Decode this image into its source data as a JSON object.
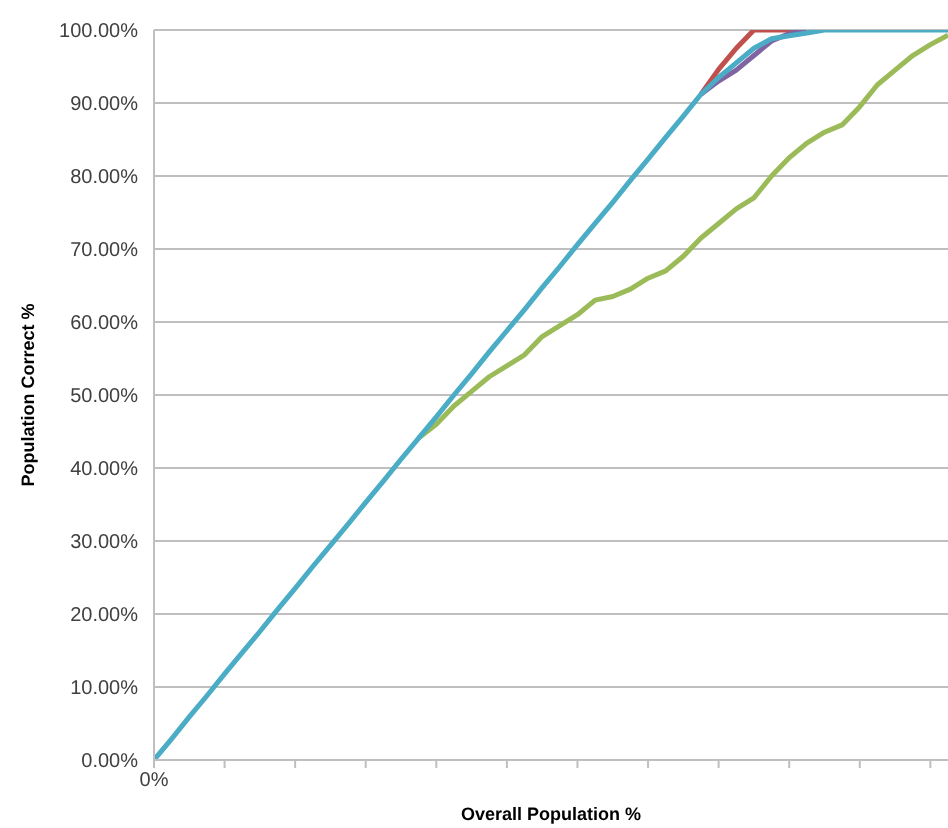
{
  "chart_data": {
    "type": "line",
    "xlabel": "Overall Population %",
    "ylabel": "Population Correct %",
    "categories": [
      "0%",
      null,
      null,
      null,
      null,
      null,
      null,
      null,
      null,
      null,
      null,
      null,
      null,
      null,
      null,
      null,
      null,
      null,
      null,
      null,
      null,
      null,
      null,
      null,
      null,
      null,
      null,
      null,
      null,
      null,
      null,
      null,
      null,
      null,
      null,
      null,
      null,
      null,
      null,
      null,
      null,
      null,
      null,
      null,
      null,
      null
    ],
    "ylim": [
      0,
      100
    ],
    "yticks": [
      {
        "value": 0,
        "label": "0.00%"
      },
      {
        "value": 10,
        "label": "10.00%"
      },
      {
        "value": 20,
        "label": "20.00%"
      },
      {
        "value": 30,
        "label": "30.00%"
      },
      {
        "value": 40,
        "label": "40.00%"
      },
      {
        "value": 50,
        "label": "50.00%"
      },
      {
        "value": 60,
        "label": "60.00%"
      },
      {
        "value": 70,
        "label": "70.00%"
      },
      {
        "value": 80,
        "label": "80.00%"
      },
      {
        "value": 90,
        "label": "90.00%"
      },
      {
        "value": 100,
        "label": "100.00%"
      }
    ],
    "grid": "y",
    "legend": false,
    "marker": "none",
    "line_style": "solid",
    "series": [
      {
        "color": "#9bbb59",
        "values": [
          null,
          null,
          null,
          null,
          null,
          null,
          null,
          null,
          null,
          null,
          null,
          null,
          null,
          null,
          null,
          44.1,
          46,
          48.5,
          50.5,
          52.5,
          54,
          55.5,
          58,
          59.5,
          61,
          63,
          63.5,
          64.5,
          66,
          67,
          69,
          71.5,
          73.5,
          75.5,
          77,
          80,
          82.5,
          84.5,
          86,
          87,
          89.5,
          92.5,
          94.5,
          96.5,
          98,
          99.3
        ]
      },
      {
        "color": "#c0504d",
        "values": [
          null,
          null,
          null,
          null,
          null,
          null,
          null,
          null,
          null,
          null,
          null,
          null,
          null,
          null,
          null,
          null,
          null,
          null,
          null,
          null,
          null,
          null,
          null,
          null,
          null,
          null,
          null,
          null,
          null,
          null,
          null,
          91.2,
          94.6,
          97.5,
          100,
          100,
          100,
          100,
          null,
          null,
          null,
          null,
          null,
          null,
          null,
          null
        ]
      },
      {
        "color": "#8064a2",
        "values": [
          null,
          null,
          null,
          null,
          null,
          null,
          null,
          null,
          null,
          null,
          null,
          null,
          null,
          null,
          null,
          null,
          null,
          null,
          null,
          null,
          null,
          null,
          null,
          null,
          null,
          null,
          null,
          null,
          null,
          null,
          null,
          91.2,
          93,
          94.5,
          96.5,
          98.5,
          99.5,
          100,
          null,
          null,
          null,
          null,
          null,
          null,
          null,
          null
        ]
      },
      {
        "color": "#4bacc6",
        "values": [
          0,
          2.9,
          5.9,
          8.8,
          11.8,
          14.7,
          17.6,
          20.6,
          23.5,
          26.5,
          29.4,
          32.3,
          35.3,
          38.2,
          41.2,
          44.1,
          47,
          50,
          52.9,
          55.9,
          58.8,
          61.7,
          64.7,
          67.6,
          70.6,
          73.5,
          76.4,
          79.4,
          82.3,
          85.3,
          88.2,
          91.2,
          93.5,
          95.5,
          97.5,
          98.8,
          99.2,
          99.6,
          100,
          100,
          100,
          100,
          100,
          100,
          100,
          100
        ]
      }
    ]
  }
}
